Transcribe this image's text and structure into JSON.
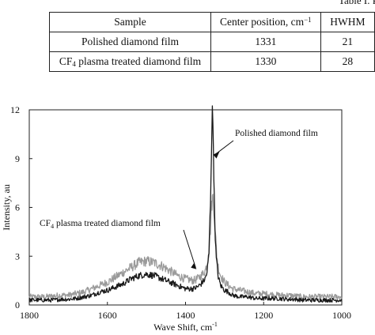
{
  "caption_fragment": "Table I. R",
  "table": {
    "headers": [
      {
        "text": "Sample"
      },
      {
        "text": "Center position, cm",
        "sup": "−1"
      },
      {
        "text": "HWHM"
      }
    ],
    "rows": [
      {
        "sample": {
          "pre": "Polished diamond film",
          "sub": "",
          "post": ""
        },
        "center": "1331",
        "hwhm": "21"
      },
      {
        "sample": {
          "pre": "CF",
          "sub": "4",
          "post": " plasma treated diamond film"
        },
        "center": "1330",
        "hwhm": "28"
      }
    ]
  },
  "chart_data": {
    "type": "line",
    "title": "",
    "xlabel": "Wave Shift, cm",
    "xlabel_sup": "-1",
    "ylabel": "Intensity, au",
    "xlim": [
      1800,
      1000
    ],
    "ylim": [
      0,
      12
    ],
    "x_reversed": true,
    "xticks": [
      "1800",
      "1600",
      "1400",
      "1200",
      "1000"
    ],
    "yticks": [
      "0",
      "3",
      "6",
      "9",
      "12"
    ],
    "grid": false,
    "series": [
      {
        "name": "Polished diamond film",
        "color": "#1a1a1a",
        "x": [
          1800,
          1780,
          1760,
          1740,
          1720,
          1700,
          1680,
          1660,
          1640,
          1620,
          1600,
          1580,
          1560,
          1540,
          1520,
          1500,
          1480,
          1460,
          1440,
          1420,
          1400,
          1380,
          1370,
          1360,
          1350,
          1345,
          1340,
          1336,
          1333,
          1331,
          1329,
          1326,
          1322,
          1316,
          1310,
          1300,
          1290,
          1280,
          1260,
          1240,
          1220,
          1200,
          1180,
          1160,
          1140,
          1120,
          1100,
          1080,
          1060,
          1040,
          1020,
          1000
        ],
        "values": [
          0.3,
          0.3,
          0.3,
          0.3,
          0.35,
          0.35,
          0.4,
          0.5,
          0.6,
          0.8,
          0.9,
          1.1,
          1.3,
          1.6,
          1.8,
          1.9,
          1.8,
          1.6,
          1.4,
          1.2,
          1.0,
          1.0,
          1.1,
          1.3,
          1.6,
          2.0,
          3.2,
          6.5,
          10.5,
          11.8,
          10.5,
          6.0,
          3.0,
          1.7,
          1.2,
          0.9,
          0.8,
          0.6,
          0.5,
          0.5,
          0.4,
          0.4,
          0.4,
          0.4,
          0.35,
          0.35,
          0.3,
          0.3,
          0.3,
          0.3,
          0.3,
          0.3
        ]
      },
      {
        "name": "CF4 plasma treated diamond film",
        "label_pre": "CF",
        "label_sub": "4",
        "label_post": " plasma treated diamond film",
        "color": "#9a9a9a",
        "x": [
          1800,
          1780,
          1760,
          1740,
          1720,
          1700,
          1680,
          1660,
          1640,
          1620,
          1600,
          1580,
          1560,
          1540,
          1520,
          1500,
          1480,
          1460,
          1440,
          1420,
          1400,
          1380,
          1370,
          1360,
          1350,
          1345,
          1340,
          1336,
          1333,
          1330,
          1327,
          1324,
          1320,
          1316,
          1310,
          1300,
          1290,
          1280,
          1260,
          1240,
          1220,
          1200,
          1180,
          1160,
          1140,
          1120,
          1100,
          1080,
          1060,
          1040,
          1020,
          1000
        ],
        "values": [
          0.5,
          0.5,
          0.5,
          0.55,
          0.6,
          0.6,
          0.7,
          0.8,
          1.0,
          1.2,
          1.4,
          1.7,
          2.0,
          2.3,
          2.6,
          2.7,
          2.6,
          2.4,
          2.1,
          1.8,
          1.6,
          1.5,
          1.6,
          1.8,
          2.1,
          2.5,
          3.3,
          4.8,
          6.3,
          6.6,
          6.0,
          4.4,
          3.1,
          2.3,
          1.8,
          1.4,
          1.2,
          1.0,
          0.9,
          0.8,
          0.7,
          0.7,
          0.65,
          0.6,
          0.6,
          0.55,
          0.5,
          0.5,
          0.5,
          0.5,
          0.5,
          0.5
        ]
      }
    ],
    "annotations": [
      {
        "series": 0,
        "text": "Polished diamond film",
        "x": 1331,
        "y": 9.3
      },
      {
        "series": 1,
        "text": "CF4 plasma treated diamond film",
        "x": 1372,
        "y": 2.2
      }
    ]
  }
}
